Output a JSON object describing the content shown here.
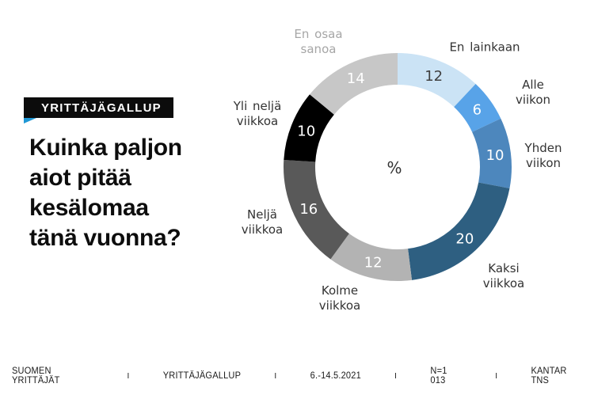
{
  "header": {
    "badge": "YRITTÄJÄGALLUP",
    "title": "Kuinka paljon\naiot pitää\nkesälomaa\ntänä vuonna?",
    "accent_color": "#2098d5"
  },
  "chart_data": {
    "type": "pie",
    "subtype": "donut",
    "title": "Kuinka paljon aiot pitää kesälomaa tänä vuonna?",
    "unit": "%",
    "center_label": "%",
    "total": 100,
    "start_angle_deg": 0,
    "direction": "clockwise",
    "segments": [
      {
        "label": "En lainkaan",
        "value": 12,
        "color": "#cbe3f5",
        "value_color": "#404040",
        "label_color": "#333333"
      },
      {
        "label": "Alle viikon",
        "value": 6,
        "color": "#58a3e8",
        "value_color": "#ffffff",
        "label_color": "#333333"
      },
      {
        "label": "Yhden\nviikon",
        "value": 10,
        "color": "#4d87bd",
        "value_color": "#ffffff",
        "label_color": "#333333"
      },
      {
        "label": "Kaksi\nviikkoa",
        "value": 20,
        "color": "#2e5f81",
        "value_color": "#ffffff",
        "label_color": "#333333"
      },
      {
        "label": "Kolme\nviikkoa",
        "value": 12,
        "color": "#b3b3b3",
        "value_color": "#ffffff",
        "label_color": "#333333"
      },
      {
        "label": "Neljä\nviikkoa",
        "value": 16,
        "color": "#595959",
        "value_color": "#ffffff",
        "label_color": "#333333"
      },
      {
        "label": "Yli neljä\nviikkoa",
        "value": 10,
        "color": "#000000",
        "value_color": "#ffffff",
        "label_color": "#333333"
      },
      {
        "label": "En osaa\nsanoa",
        "value": 14,
        "color": "#c7c7c7",
        "value_color": "#ffffff",
        "label_color": "#a6a6a6"
      }
    ]
  },
  "footer": {
    "items": [
      "SUOMEN YRITTÄJÄT",
      "YRITTÄJÄGALLUP",
      "6.-14.5.2021",
      "N=1 013",
      "KANTAR TNS"
    ],
    "separator": "I"
  }
}
